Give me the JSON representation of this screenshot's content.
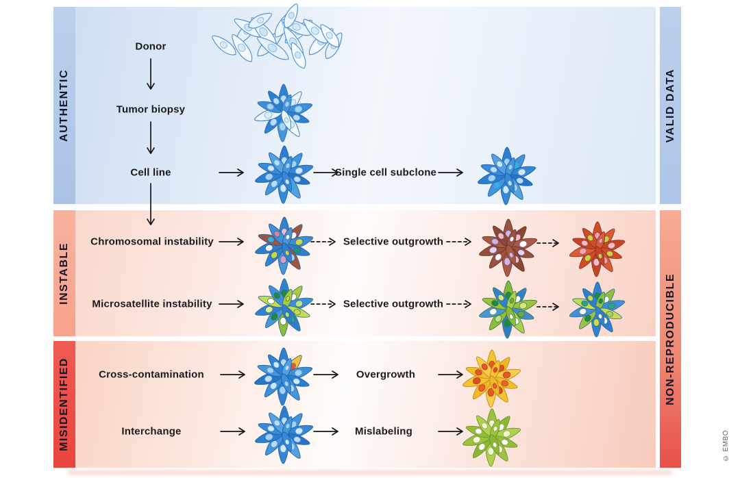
{
  "theme": {
    "background": "#ffffff",
    "text_color": "#1a1a1a",
    "arrow_color": "#141414",
    "authentic_strip_top": "#bdd0ec",
    "authentic_strip_bottom": "#a9c3e6",
    "valid_strip_top": "#bccfeb",
    "valid_strip_bottom": "#adc6e8",
    "instable_strip_top": "#f9b29e",
    "instable_strip_bottom": "#f7a28c",
    "misidentified_strip_top": "#ee5b52",
    "misidentified_strip_bottom": "#e8463f",
    "nonrepro_strip_top": "#f7ab95",
    "nonrepro_strip_mid": "#f08973",
    "nonrepro_strip_bottom": "#e85048",
    "band1_bg_left": "#cfdff2",
    "band1_bg_mid": "#f3f7fc",
    "band1_bg_right": "#dde9f6",
    "band2_bg_left": "#fad8cd",
    "band2_bg_mid": "#fefbfa",
    "band2_bg_right": "#f9d2c6",
    "band3_bg_left": "#fad4c5",
    "band3_bg_mid": "#fefcfb",
    "band3_bg_right": "#f8cbbc"
  },
  "sections": {
    "authentic": {
      "label": "AUTHENTIC"
    },
    "instable": {
      "label": "INSTABLE"
    },
    "misidentified": {
      "label": "MISIDENTIFIED"
    }
  },
  "right_labels": {
    "valid_data": "VALID DATA",
    "non_reproducible": "NON-REPRODUCIBLE"
  },
  "credit": "© EMBO",
  "labels": {
    "donor": "Donor",
    "tumor_biopsy": "Tumor biopsy",
    "cell_line": "Cell line",
    "single_cell_subclone": "Single cell subclone",
    "chromosomal_instability": "Chromosomal instability",
    "selective_outgrowth": "Selective outgrowth",
    "microsatellite_instability": "Microsatellite instability",
    "cross_contamination": "Cross-contamination",
    "overgrowth": "Overgrowth",
    "interchange": "Interchange",
    "mislabeling": "Mislabeling"
  },
  "clusters": {
    "donor_mass": {
      "variant": "mass",
      "bodies": [
        "#eef6fd",
        "#e6f1fb",
        "#f4f9fe"
      ],
      "nuclei": [
        "#d6eaf9",
        "#cce4f7"
      ],
      "stroke": "#4a8fd0",
      "nucleus_stroke": "#86b9e4"
    },
    "tumor_biopsy": {
      "variant": "cluster",
      "bodies": [
        "#3181d1",
        "#ecf5fc",
        "#3e8ed8",
        "#2e7ecf",
        "#f1f8fd",
        "#4796da",
        "#3181d1",
        "#ecf5fc",
        "#3e8ed8",
        "#2e7ecf",
        "#4796da",
        "#ecf5fc"
      ],
      "nuclei": [
        "#badef7",
        "#d9edfb",
        "#a6d2f1",
        "#badef7",
        "#d9edfb",
        "#a6d2f1",
        "#badef7",
        "#d9edfb",
        "#a6d2f1",
        "#badef7",
        "#a6d2f1",
        "#d9edfb"
      ],
      "stroke": "#2a6db8",
      "nucleus_stroke": "#6fa9dd"
    },
    "cell_line": {
      "variant": "cluster",
      "bodies": [
        "#2e7ecf",
        "#4494da",
        "#3687d4",
        "#2a74c6",
        "#55a1e0",
        "#3687d4",
        "#4494da",
        "#2e7ecf",
        "#3a8ad6",
        "#55a1e0",
        "#4494da",
        "#3687d4"
      ],
      "nuclei": [
        "#badef7",
        "#a6d2f1",
        "#cfe8fa",
        "#badef7",
        "#2fb0de",
        "#cfe8fa",
        "#badef7",
        "#a6d2f1",
        "#cfe8fa",
        "#badef7",
        "#a6d2f1",
        "#cfe8fa"
      ],
      "stroke": "#1d62ad",
      "nucleus_stroke": "#4f93cf"
    },
    "subclone": {
      "variant": "cluster",
      "bodies": [
        "#2e7ecf",
        "#4494da",
        "#3687d4",
        "#2a74c6",
        "#55a1e0",
        "#3687d4",
        "#4494da",
        "#2e7ecf",
        "#3a8ad6",
        "#55a1e0",
        "#4494da",
        "#3687d4"
      ],
      "nuclei": [
        "#a6d2f1",
        "#2fb0de",
        "#cfe8fa",
        "#badef7",
        "#a6d2f1",
        "#cfe8fa",
        "#2fb0de",
        "#a6d2f1",
        "#badef7",
        "#cfe8fa",
        "#a6d2f1",
        "#badef7"
      ],
      "stroke": "#1d62ad",
      "nucleus_stroke": "#4f93cf"
    },
    "chromosomal": {
      "variant": "cluster",
      "bodies": [
        "#3181d1",
        "#a3543f",
        "#3e8ed8",
        "#2e7ecf",
        "#a3543f",
        "#4796da",
        "#3181d1",
        "#2e7ecf",
        "#a3543f",
        "#3e8ed8",
        "#4796da",
        "#3181d1"
      ],
      "nuclei": [
        "#e9b9e2",
        "#ffffff",
        "#c9d94a",
        "#15967d",
        "#a6d2f1",
        "#d4a0c8",
        "#c9d94a",
        "#f2f8fd",
        "#2fb0de",
        "#c98a9b",
        "#ffffff",
        "#c9d94a"
      ],
      "stroke": "#2d5d94",
      "nucleus_stroke": "#44617e"
    },
    "outgrowth1_mid": {
      "variant": "cluster",
      "bodies": [
        "#9c5240",
        "#8a4735",
        "#a85a46",
        "#94503d",
        "#8a4735",
        "#a85a46",
        "#9c5240",
        "#94503d",
        "#a85a46",
        "#8a4735",
        "#9c5240",
        "#a85a46"
      ],
      "nuclei": [
        "#cdb6e8",
        "#f4bcc9",
        "#ffffff",
        "#e5d3f0",
        "#f4bcc9",
        "#cdb6e8",
        "#ffffff",
        "#e5d3f0",
        "#cdb6e8",
        "#f4bcc9",
        "#ffffff",
        "#cdb6e8"
      ],
      "stroke": "#6e3526",
      "nucleus_stroke": "#7d5d8a"
    },
    "outgrowth1_final": {
      "variant": "cluster",
      "bodies": [
        "#cf4c28",
        "#d85c35",
        "#c2452a",
        "#cf4c28",
        "#d85c35",
        "#c2452a",
        "#cf4c28",
        "#d85c35",
        "#c2452a",
        "#cf4c28",
        "#d85c35",
        "#c2452a"
      ],
      "nuclei": [
        "#f2a2b5",
        "#c8d63e",
        "#f4bcc9",
        "#c8d63e",
        "#f2a2b5",
        "#f4bcc9",
        "#c8d63e",
        "#f2a2b5",
        "#f4bcc9",
        "#c8d63e",
        "#f2a2b5",
        "#c8d63e"
      ],
      "stroke": "#8e3118",
      "nucleus_stroke": "#96505a"
    },
    "microsatellite": {
      "variant": "cluster",
      "bodies": [
        "#3181d1",
        "#a9cb3d",
        "#3e8ed8",
        "#c6dc52",
        "#2e7ecf",
        "#8cbe3a",
        "#4796da",
        "#3181d1",
        "#c6dc52",
        "#3e8ed8",
        "#a9cb3d",
        "#2e7ecf"
      ],
      "nuclei": [
        "#1b8a45",
        "#ffffff",
        "#bfe18a",
        "#c9d94a",
        "#2aa198",
        "#ffffff",
        "#1b8a45",
        "#d9ec9a",
        "#ffffff",
        "#1b8a45",
        "#c9d94a",
        "#bfe18a"
      ],
      "stroke": "#33708f",
      "nucleus_stroke": "#3f7050"
    },
    "outgrowth2_mid": {
      "variant": "cluster",
      "bodies": [
        "#7fb83a",
        "#3181d1",
        "#9cc23f",
        "#3e8ed8",
        "#aed04e",
        "#2e7ecf",
        "#8cbe3a",
        "#4796da",
        "#9cc23f",
        "#3181d1",
        "#aed04e",
        "#8cbe3a"
      ],
      "nuclei": [
        "#1b8a45",
        "#ffffff",
        "#d4e87a",
        "#6fae35",
        "#ffffff",
        "#1b8a45",
        "#bfe18a",
        "#ffffff",
        "#1b8a45",
        "#d4e87a",
        "#6fae35",
        "#ffffff"
      ],
      "stroke": "#467a3a",
      "nucleus_stroke": "#3f7050"
    },
    "outgrowth2_final": {
      "variant": "cluster",
      "bodies": [
        "#3181d1",
        "#8fc13e",
        "#3e8ed8",
        "#c6dc52",
        "#2e7ecf",
        "#3181d1",
        "#9cc23f",
        "#3e8ed8",
        "#c6dc52",
        "#2e7ecf",
        "#8fc13e",
        "#3181d1"
      ],
      "nuclei": [
        "#1b8a45",
        "#ffffff",
        "#2aa198",
        "#9fd468",
        "#ffffff",
        "#c9d94a",
        "#1b8a45",
        "#ffffff",
        "#2aa198",
        "#c9d94a",
        "#1b8a45",
        "#ffffff"
      ],
      "stroke": "#33708f",
      "nucleus_stroke": "#3f7050"
    },
    "cross_contamination": {
      "variant": "cluster",
      "bodies": [
        "#3181d1",
        "#f2c230",
        "#3e8ed8",
        "#2e7ecf",
        "#4796da",
        "#3181d1",
        "#3e8ed8",
        "#2a74c6",
        "#4796da",
        "#3181d1",
        "#55a1e0",
        "#3e8ed8"
      ],
      "nuclei": [
        "#badef7",
        "#e2582a",
        "#a6d2f1",
        "#cfe8fa",
        "#badef7",
        "#a6d2f1",
        "#cfe8fa",
        "#badef7",
        "#a6d2f1",
        "#cfe8fa",
        "#badef7",
        "#a6d2f1"
      ],
      "stroke": "#1d62ad",
      "nucleus_stroke": "#4f93cf"
    },
    "overgrown": {
      "variant": "cluster",
      "bodies": [
        "#f5c232",
        "#f0b825",
        "#f8cc4a",
        "#f2bd2b",
        "#f5c232",
        "#f8cc4a",
        "#f0b825",
        "#f5c232",
        "#f2bd2b",
        "#f8cc4a",
        "#f5c232",
        "#f0b825"
      ],
      "nuclei": [
        "#e2582a",
        "#db4f22",
        "#e2582a",
        "#e8612f",
        "#db4f22",
        "#e2582a",
        "#e8612f",
        "#db4f22",
        "#e2582a",
        "#e2582a",
        "#db4f22",
        "#e8612f"
      ],
      "stroke": "#c18b1c",
      "nucleus_stroke": "#b33f16"
    },
    "interchange": {
      "variant": "cluster",
      "bodies": [
        "#2e7ecf",
        "#4494da",
        "#3687d4",
        "#2a74c6",
        "#55a1e0",
        "#3687d4",
        "#4494da",
        "#2e7ecf",
        "#3a8ad6",
        "#55a1e0",
        "#4494da",
        "#3687d4"
      ],
      "nuclei": [
        "#badef7",
        "#a6d2f1",
        "#cfe8fa",
        "#badef7",
        "#a6d2f1",
        "#cfe8fa",
        "#badef7",
        "#a6d2f1",
        "#cfe8fa",
        "#badef7",
        "#a6d2f1",
        "#cfe8fa"
      ],
      "stroke": "#1d62ad",
      "nucleus_stroke": "#4f93cf"
    },
    "mislabeled": {
      "variant": "cluster",
      "bodies": [
        "#9cc23f",
        "#8ab835",
        "#aed04e",
        "#94bd3a",
        "#9cc23f",
        "#aed04e",
        "#8ab835",
        "#9cc23f",
        "#94bd3a",
        "#aed04e",
        "#9cc23f",
        "#8ab835"
      ],
      "nuclei": [
        "#f4f9e0",
        "#ffffff",
        "#eef6d2",
        "#ffffff",
        "#f4f9e0",
        "#eef6d2",
        "#ffffff",
        "#f4f9e0",
        "#ffffff",
        "#eef6d2",
        "#f4f9e0",
        "#ffffff"
      ],
      "stroke": "#6f9428",
      "nucleus_stroke": "#86a23c"
    }
  }
}
